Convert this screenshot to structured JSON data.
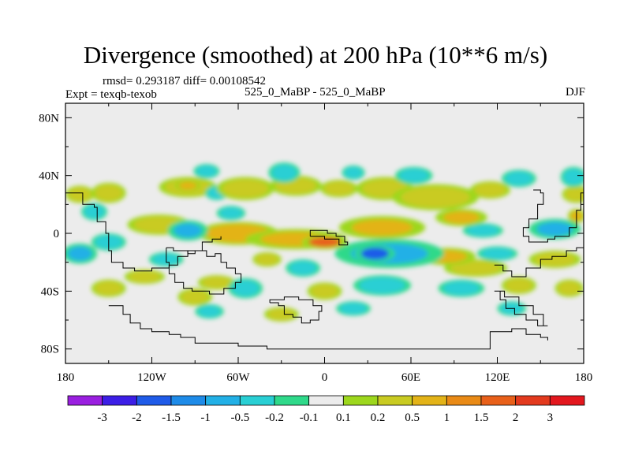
{
  "header": {
    "title": "Divergence (smoothed) at 200 hPa (10**6 m/s)",
    "stats": "rmsd= 0.293187 diff= 0.00108542",
    "expt": "Expt = texqb-texob",
    "cases": "525_0_MaBP - 525_0_MaBP",
    "season": "DJF"
  },
  "chart_data": {
    "type": "heatmap",
    "title": "Divergence (smoothed) at 200 hPa (10**6 m/s)",
    "xlabel": "",
    "ylabel": "",
    "xlim": [
      -180,
      180
    ],
    "ylim": [
      -90,
      90
    ],
    "x_ticks": [
      {
        "value": -180,
        "label": "180"
      },
      {
        "value": -120,
        "label": "120W"
      },
      {
        "value": -60,
        "label": "60W"
      },
      {
        "value": 0,
        "label": "0"
      },
      {
        "value": 60,
        "label": "60E"
      },
      {
        "value": 120,
        "label": "120E"
      },
      {
        "value": 180,
        "label": "180"
      }
    ],
    "y_ticks": [
      {
        "value": 80,
        "label": "80N"
      },
      {
        "value": 40,
        "label": "40N"
      },
      {
        "value": 0,
        "label": "0"
      },
      {
        "value": -40,
        "label": "40S"
      },
      {
        "value": -80,
        "label": "80S"
      }
    ],
    "colorbar": {
      "labels": [
        "-3",
        "-2",
        "-1.5",
        "-1",
        "-0.5",
        "-0.2",
        "-0.1",
        "0.1",
        "0.2",
        "0.5",
        "1",
        "1.5",
        "2",
        "3"
      ],
      "colors": [
        "#9a1fe0",
        "#3c1ee6",
        "#1f5be8",
        "#1e8be8",
        "#22b0e6",
        "#29cfd4",
        "#2fd98a",
        "#ececec",
        "#9dd71d",
        "#c9cb22",
        "#e3b318",
        "#e98a16",
        "#e8601a",
        "#e33a1e",
        "#e3171e"
      ]
    },
    "features": [
      {
        "lon": -170,
        "lat": 27,
        "lon_w": 10,
        "lat_w": 6,
        "value": 0.3
      },
      {
        "lon": -150,
        "lat": 28,
        "lon_w": 12,
        "lat_w": 7,
        "value": 0.3
      },
      {
        "lon": -95,
        "lat": 32,
        "lon_w": 20,
        "lat_w": 7,
        "value": 0.3
      },
      {
        "lon": -95,
        "lat": 33,
        "lon_w": 9,
        "lat_w": 4,
        "value": 0.7
      },
      {
        "lon": -55,
        "lat": 31,
        "lon_w": 20,
        "lat_w": 8,
        "value": 0.4
      },
      {
        "lon": -20,
        "lat": 33,
        "lon_w": 18,
        "lat_w": 7,
        "value": 0.3
      },
      {
        "lon": 10,
        "lat": 31,
        "lon_w": 13,
        "lat_w": 6,
        "value": 0.3
      },
      {
        "lon": 42,
        "lat": 31,
        "lon_w": 20,
        "lat_w": 8,
        "value": 0.3
      },
      {
        "lon": 77,
        "lat": 25,
        "lon_w": 30,
        "lat_w": 9,
        "value": 0.35
      },
      {
        "lon": 115,
        "lat": 30,
        "lon_w": 14,
        "lat_w": 6,
        "value": 0.3
      },
      {
        "lon": 175,
        "lat": 27,
        "lon_w": 10,
        "lat_w": 6,
        "value": 0.3
      },
      {
        "lon": -82,
        "lat": 43,
        "lon_w": 9,
        "lat_w": 5,
        "value": -0.3
      },
      {
        "lon": -75,
        "lat": 28,
        "lon_w": 8,
        "lat_w": 5,
        "value": -0.3
      },
      {
        "lon": -28,
        "lat": 42,
        "lon_w": 11,
        "lat_w": 7,
        "value": -0.3
      },
      {
        "lon": 20,
        "lat": 42,
        "lon_w": 8,
        "lat_w": 5,
        "value": -0.3
      },
      {
        "lon": 62,
        "lat": 40,
        "lon_w": 13,
        "lat_w": 6,
        "value": -0.3
      },
      {
        "lon": 135,
        "lat": 38,
        "lon_w": 12,
        "lat_w": 6,
        "value": -0.3
      },
      {
        "lon": 173,
        "lat": 39,
        "lon_w": 9,
        "lat_w": 7,
        "value": -0.3
      },
      {
        "lon": -160,
        "lat": 15,
        "lon_w": 9,
        "lat_w": 6,
        "value": -0.3
      },
      {
        "lon": -115,
        "lat": 6,
        "lon_w": 22,
        "lat_w": 7,
        "value": 0.3
      },
      {
        "lon": -95,
        "lat": 2,
        "lon_w": 14,
        "lat_w": 7,
        "value": -0.7
      },
      {
        "lon": -65,
        "lat": 14,
        "lon_w": 10,
        "lat_w": 5,
        "value": -0.3
      },
      {
        "lon": -60,
        "lat": 0,
        "lon_w": 28,
        "lat_w": 8,
        "value": 0.5
      },
      {
        "lon": -20,
        "lat": -4,
        "lon_w": 35,
        "lat_w": 7,
        "value": 0.8
      },
      {
        "lon": 0,
        "lat": -6,
        "lon_w": 16,
        "lat_w": 5,
        "value": 1.7
      },
      {
        "lon": 40,
        "lat": 4,
        "lon_w": 30,
        "lat_w": 8,
        "value": 0.6
      },
      {
        "lon": 95,
        "lat": 11,
        "lon_w": 18,
        "lat_w": 6,
        "value": 0.6
      },
      {
        "lon": 110,
        "lat": 2,
        "lon_w": 14,
        "lat_w": 5,
        "value": -0.3
      },
      {
        "lon": 160,
        "lat": 3,
        "lon_w": 18,
        "lat_w": 7,
        "value": -0.9
      },
      {
        "lon": 175,
        "lat": 12,
        "lon_w": 6,
        "lat_w": 5,
        "value": 0.6
      },
      {
        "lon": -170,
        "lat": -14,
        "lon_w": 12,
        "lat_w": 7,
        "value": -0.9
      },
      {
        "lon": -150,
        "lat": -6,
        "lon_w": 12,
        "lat_w": 6,
        "value": -0.3
      },
      {
        "lon": -125,
        "lat": -30,
        "lon_w": 14,
        "lat_w": 5,
        "value": 0.3
      },
      {
        "lon": -110,
        "lat": -18,
        "lon_w": 12,
        "lat_w": 5,
        "value": -0.3
      },
      {
        "lon": -75,
        "lat": -34,
        "lon_w": 13,
        "lat_w": 5,
        "value": 0.3
      },
      {
        "lon": -40,
        "lat": -18,
        "lon_w": 10,
        "lat_w": 5,
        "value": 0.3
      },
      {
        "lon": -15,
        "lat": -24,
        "lon_w": 12,
        "lat_w": 6,
        "value": -0.3
      },
      {
        "lon": 45,
        "lat": -14,
        "lon_w": 38,
        "lat_w": 10,
        "value": -0.9
      },
      {
        "lon": 35,
        "lat": -14,
        "lon_w": 14,
        "lat_w": 6,
        "value": -1.7
      },
      {
        "lon": 85,
        "lat": -16,
        "lon_w": 20,
        "lat_w": 6,
        "value": 0.6
      },
      {
        "lon": 105,
        "lat": -24,
        "lon_w": 22,
        "lat_w": 6,
        "value": 0.3
      },
      {
        "lon": 120,
        "lat": -14,
        "lon_w": 14,
        "lat_w": 5,
        "value": -0.3
      },
      {
        "lon": 160,
        "lat": -18,
        "lon_w": 18,
        "lat_w": 6,
        "value": 0.35
      },
      {
        "lon": -150,
        "lat": -38,
        "lon_w": 12,
        "lat_w": 6,
        "value": 0.3
      },
      {
        "lon": -90,
        "lat": -44,
        "lon_w": 12,
        "lat_w": 6,
        "value": 0.3
      },
      {
        "lon": -55,
        "lat": -38,
        "lon_w": 12,
        "lat_w": 7,
        "value": -0.3
      },
      {
        "lon": 0,
        "lat": -40,
        "lon_w": 12,
        "lat_w": 6,
        "value": 0.3
      },
      {
        "lon": 40,
        "lat": -36,
        "lon_w": 20,
        "lat_w": 7,
        "value": -0.3
      },
      {
        "lon": 95,
        "lat": -38,
        "lon_w": 16,
        "lat_w": 6,
        "value": -0.3
      },
      {
        "lon": 135,
        "lat": -36,
        "lon_w": 12,
        "lat_w": 6,
        "value": 0.3
      },
      {
        "lon": 170,
        "lat": -38,
        "lon_w": 10,
        "lat_w": 6,
        "value": 0.3
      },
      {
        "lon": -30,
        "lat": -56,
        "lon_w": 12,
        "lat_w": 5,
        "value": 0.3
      },
      {
        "lon": 20,
        "lat": -52,
        "lon_w": 12,
        "lat_w": 5,
        "value": -0.3
      },
      {
        "lon": -80,
        "lat": -54,
        "lon_w": 10,
        "lat_w": 5,
        "value": -0.3
      },
      {
        "lon": 130,
        "lat": -52,
        "lon_w": 10,
        "lat_w": 5,
        "value": -0.3
      }
    ]
  }
}
